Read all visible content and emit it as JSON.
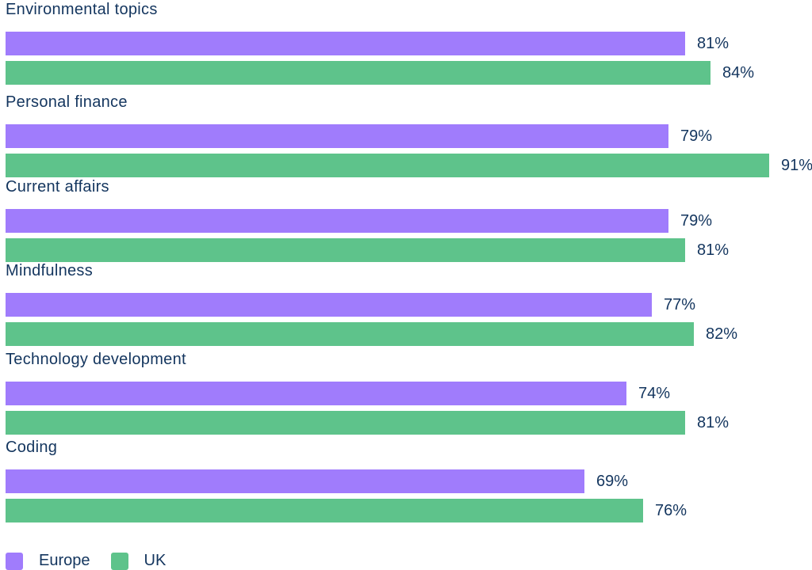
{
  "chart_data": {
    "type": "bar",
    "orientation": "horizontal",
    "title": "",
    "xlabel": "",
    "ylabel": "",
    "categories": [
      "Environmental topics",
      "Personal finance",
      "Current affairs",
      "Mindfulness",
      "Technology development",
      "Coding"
    ],
    "series": [
      {
        "name": "Europe",
        "color": "#a07cfc",
        "values": [
          81,
          79,
          79,
          77,
          74,
          69
        ]
      },
      {
        "name": "UK",
        "color": "#5ec38b",
        "values": [
          84,
          91,
          81,
          82,
          81,
          76
        ]
      }
    ],
    "value_labels": {
      "Europe": [
        "81%",
        "79%",
        "79%",
        "77%",
        "74%",
        "69%"
      ],
      "UK": [
        "84%",
        "91%",
        "81%",
        "82%",
        "81%",
        "76%"
      ]
    },
    "xlim": [
      0,
      91
    ],
    "grid": false,
    "legend_position": "bottom-left"
  },
  "legend": {
    "items": [
      {
        "label": "Europe",
        "color": "#a07cfc"
      },
      {
        "label": "UK",
        "color": "#5ec38b"
      }
    ]
  }
}
